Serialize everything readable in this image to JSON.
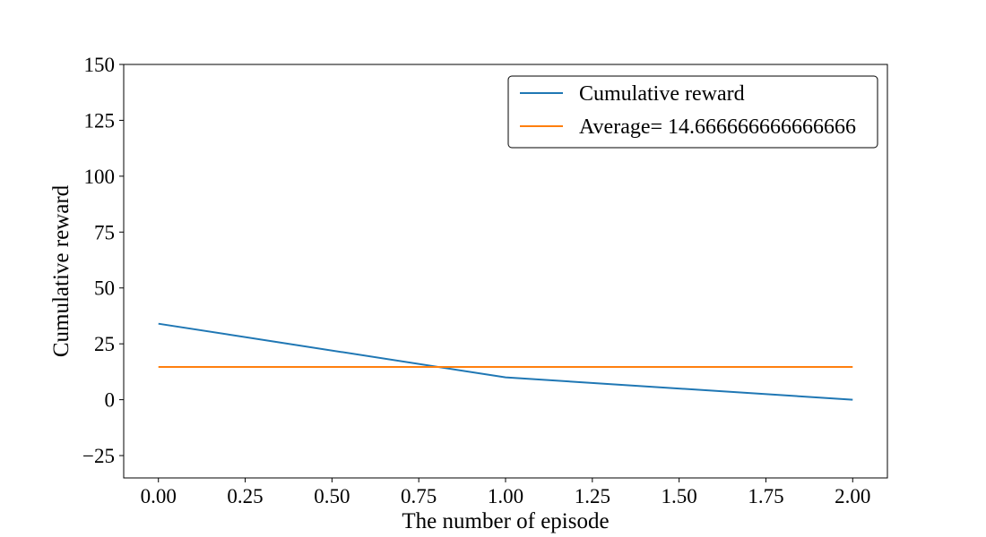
{
  "chart_data": {
    "type": "line",
    "title": "",
    "xlabel": "The number of episode",
    "ylabel": "Cumulative reward",
    "xlim": [
      -0.1,
      2.1
    ],
    "ylim": [
      -35,
      150
    ],
    "x_ticks": [
      0.0,
      0.25,
      0.5,
      0.75,
      1.0,
      1.25,
      1.5,
      1.75,
      2.0
    ],
    "x_tick_labels": [
      "0.00",
      "0.25",
      "0.50",
      "0.75",
      "1.00",
      "1.25",
      "1.50",
      "1.75",
      "2.00"
    ],
    "y_ticks": [
      -25,
      0,
      25,
      50,
      75,
      100,
      125,
      150
    ],
    "y_tick_labels": [
      "−25",
      "0",
      "25",
      "50",
      "75",
      "100",
      "125",
      "150"
    ],
    "grid": false,
    "legend_position": "top-right",
    "series": [
      {
        "name": "Cumulative reward",
        "color": "#1f77b4",
        "x": [
          0,
          1,
          2
        ],
        "y": [
          34,
          10,
          0
        ]
      },
      {
        "name": "Average= 14.666666666666666",
        "color": "#ff7f0e",
        "x": [
          0,
          2
        ],
        "y": [
          14.666666666666666,
          14.666666666666666
        ]
      }
    ]
  }
}
